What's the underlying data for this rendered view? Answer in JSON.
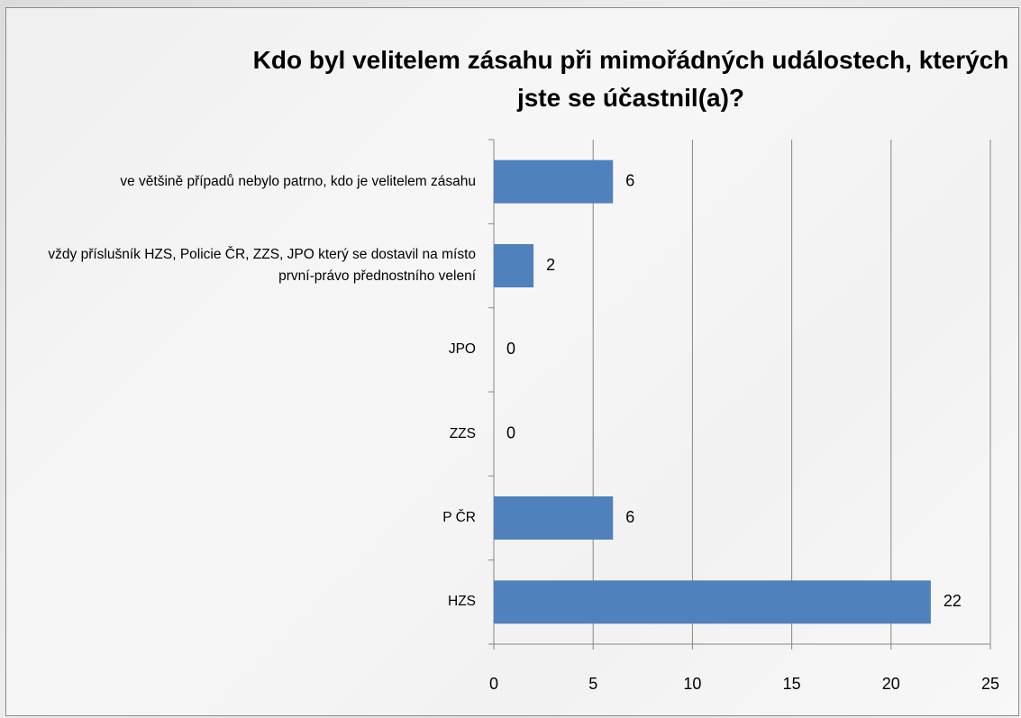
{
  "chart_data": {
    "type": "bar",
    "orientation": "horizontal",
    "title": "Kdo byl velitelem zásahu při mimořádných událostech, kterých jste se účastnil(a)?",
    "categories": [
      "ve většině případů nebylo patrno, kdo je velitelem zásahu",
      "vždy příslušník HZS, Policie ČR, ZZS, JPO který se dostavil na místo první-právo přednostního velení",
      "JPO",
      "ZZS",
      "P ČR",
      "HZS"
    ],
    "values": [
      6,
      2,
      0,
      0,
      6,
      22
    ],
    "color": "#4f81bd",
    "xlim": [
      0,
      25
    ],
    "xticks": [
      0,
      5,
      10,
      15,
      20,
      25
    ],
    "grid": true
  }
}
